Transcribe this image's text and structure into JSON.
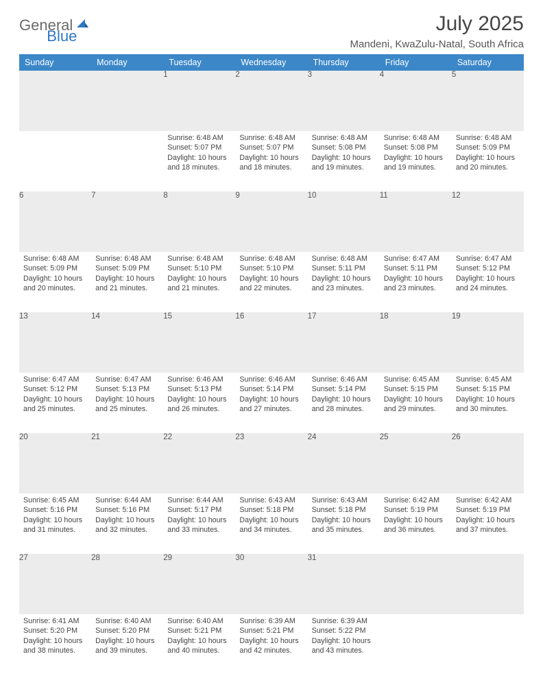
{
  "logo": {
    "general": "General",
    "blue": "Blue"
  },
  "title": "July 2025",
  "location": "Mandeni, KwaZulu-Natal, South Africa",
  "colors": {
    "header_bg": "#3b87c8",
    "header_text": "#ffffff",
    "daynum_bg": "#ececec",
    "row_border": "#2f6faf",
    "logo_gray": "#6a6a6a",
    "logo_blue": "#2f78c2",
    "text": "#444444",
    "title_text": "#454545"
  },
  "typography": {
    "body_fontsize": 10.7,
    "title_fontsize": 30,
    "location_fontsize": 15,
    "header_fontsize": 12.5,
    "daynum_fontsize": 11.5
  },
  "dayHeaders": [
    "Sunday",
    "Monday",
    "Tuesday",
    "Wednesday",
    "Thursday",
    "Friday",
    "Saturday"
  ],
  "weeks": [
    {
      "nums": [
        "",
        "",
        "1",
        "2",
        "3",
        "4",
        "5"
      ],
      "cells": [
        null,
        null,
        {
          "sunrise": "Sunrise: 6:48 AM",
          "sunset": "Sunset: 5:07 PM",
          "daylight": "Daylight: 10 hours and 18 minutes."
        },
        {
          "sunrise": "Sunrise: 6:48 AM",
          "sunset": "Sunset: 5:07 PM",
          "daylight": "Daylight: 10 hours and 18 minutes."
        },
        {
          "sunrise": "Sunrise: 6:48 AM",
          "sunset": "Sunset: 5:08 PM",
          "daylight": "Daylight: 10 hours and 19 minutes."
        },
        {
          "sunrise": "Sunrise: 6:48 AM",
          "sunset": "Sunset: 5:08 PM",
          "daylight": "Daylight: 10 hours and 19 minutes."
        },
        {
          "sunrise": "Sunrise: 6:48 AM",
          "sunset": "Sunset: 5:09 PM",
          "daylight": "Daylight: 10 hours and 20 minutes."
        }
      ]
    },
    {
      "nums": [
        "6",
        "7",
        "8",
        "9",
        "10",
        "11",
        "12"
      ],
      "cells": [
        {
          "sunrise": "Sunrise: 6:48 AM",
          "sunset": "Sunset: 5:09 PM",
          "daylight": "Daylight: 10 hours and 20 minutes."
        },
        {
          "sunrise": "Sunrise: 6:48 AM",
          "sunset": "Sunset: 5:09 PM",
          "daylight": "Daylight: 10 hours and 21 minutes."
        },
        {
          "sunrise": "Sunrise: 6:48 AM",
          "sunset": "Sunset: 5:10 PM",
          "daylight": "Daylight: 10 hours and 21 minutes."
        },
        {
          "sunrise": "Sunrise: 6:48 AM",
          "sunset": "Sunset: 5:10 PM",
          "daylight": "Daylight: 10 hours and 22 minutes."
        },
        {
          "sunrise": "Sunrise: 6:48 AM",
          "sunset": "Sunset: 5:11 PM",
          "daylight": "Daylight: 10 hours and 23 minutes."
        },
        {
          "sunrise": "Sunrise: 6:47 AM",
          "sunset": "Sunset: 5:11 PM",
          "daylight": "Daylight: 10 hours and 23 minutes."
        },
        {
          "sunrise": "Sunrise: 6:47 AM",
          "sunset": "Sunset: 5:12 PM",
          "daylight": "Daylight: 10 hours and 24 minutes."
        }
      ]
    },
    {
      "nums": [
        "13",
        "14",
        "15",
        "16",
        "17",
        "18",
        "19"
      ],
      "cells": [
        {
          "sunrise": "Sunrise: 6:47 AM",
          "sunset": "Sunset: 5:12 PM",
          "daylight": "Daylight: 10 hours and 25 minutes."
        },
        {
          "sunrise": "Sunrise: 6:47 AM",
          "sunset": "Sunset: 5:13 PM",
          "daylight": "Daylight: 10 hours and 25 minutes."
        },
        {
          "sunrise": "Sunrise: 6:46 AM",
          "sunset": "Sunset: 5:13 PM",
          "daylight": "Daylight: 10 hours and 26 minutes."
        },
        {
          "sunrise": "Sunrise: 6:46 AM",
          "sunset": "Sunset: 5:14 PM",
          "daylight": "Daylight: 10 hours and 27 minutes."
        },
        {
          "sunrise": "Sunrise: 6:46 AM",
          "sunset": "Sunset: 5:14 PM",
          "daylight": "Daylight: 10 hours and 28 minutes."
        },
        {
          "sunrise": "Sunrise: 6:45 AM",
          "sunset": "Sunset: 5:15 PM",
          "daylight": "Daylight: 10 hours and 29 minutes."
        },
        {
          "sunrise": "Sunrise: 6:45 AM",
          "sunset": "Sunset: 5:15 PM",
          "daylight": "Daylight: 10 hours and 30 minutes."
        }
      ]
    },
    {
      "nums": [
        "20",
        "21",
        "22",
        "23",
        "24",
        "25",
        "26"
      ],
      "cells": [
        {
          "sunrise": "Sunrise: 6:45 AM",
          "sunset": "Sunset: 5:16 PM",
          "daylight": "Daylight: 10 hours and 31 minutes."
        },
        {
          "sunrise": "Sunrise: 6:44 AM",
          "sunset": "Sunset: 5:16 PM",
          "daylight": "Daylight: 10 hours and 32 minutes."
        },
        {
          "sunrise": "Sunrise: 6:44 AM",
          "sunset": "Sunset: 5:17 PM",
          "daylight": "Daylight: 10 hours and 33 minutes."
        },
        {
          "sunrise": "Sunrise: 6:43 AM",
          "sunset": "Sunset: 5:18 PM",
          "daylight": "Daylight: 10 hours and 34 minutes."
        },
        {
          "sunrise": "Sunrise: 6:43 AM",
          "sunset": "Sunset: 5:18 PM",
          "daylight": "Daylight: 10 hours and 35 minutes."
        },
        {
          "sunrise": "Sunrise: 6:42 AM",
          "sunset": "Sunset: 5:19 PM",
          "daylight": "Daylight: 10 hours and 36 minutes."
        },
        {
          "sunrise": "Sunrise: 6:42 AM",
          "sunset": "Sunset: 5:19 PM",
          "daylight": "Daylight: 10 hours and 37 minutes."
        }
      ]
    },
    {
      "nums": [
        "27",
        "28",
        "29",
        "30",
        "31",
        "",
        ""
      ],
      "cells": [
        {
          "sunrise": "Sunrise: 6:41 AM",
          "sunset": "Sunset: 5:20 PM",
          "daylight": "Daylight: 10 hours and 38 minutes."
        },
        {
          "sunrise": "Sunrise: 6:40 AM",
          "sunset": "Sunset: 5:20 PM",
          "daylight": "Daylight: 10 hours and 39 minutes."
        },
        {
          "sunrise": "Sunrise: 6:40 AM",
          "sunset": "Sunset: 5:21 PM",
          "daylight": "Daylight: 10 hours and 40 minutes."
        },
        {
          "sunrise": "Sunrise: 6:39 AM",
          "sunset": "Sunset: 5:21 PM",
          "daylight": "Daylight: 10 hours and 42 minutes."
        },
        {
          "sunrise": "Sunrise: 6:39 AM",
          "sunset": "Sunset: 5:22 PM",
          "daylight": "Daylight: 10 hours and 43 minutes."
        },
        null,
        null
      ]
    }
  ]
}
